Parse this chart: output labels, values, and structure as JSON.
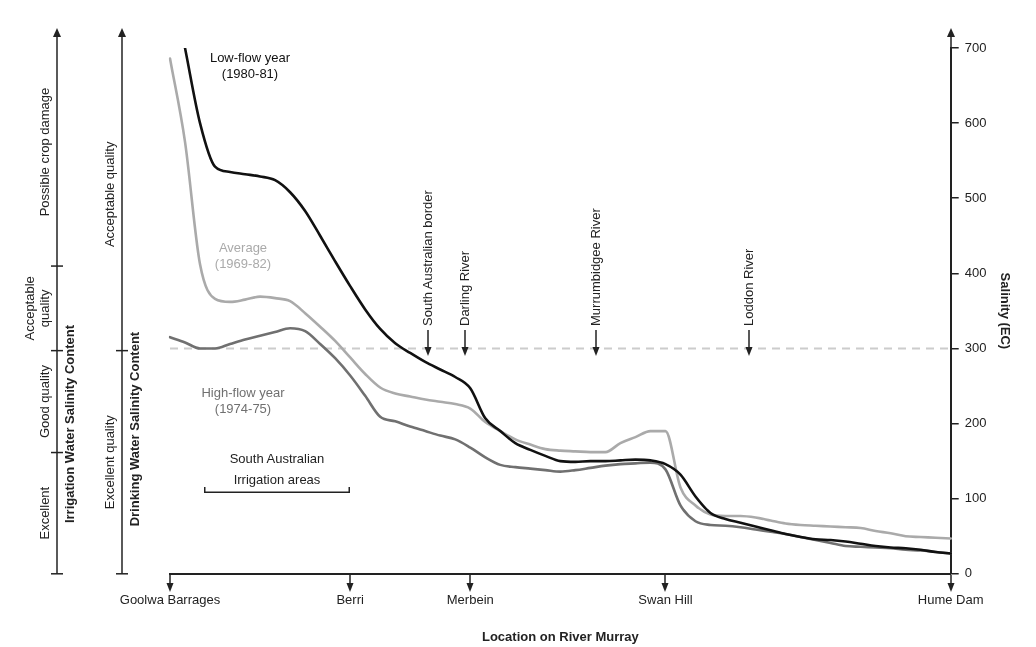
{
  "chart_data": {
    "type": "line",
    "xlabel": "Location on River Murray",
    "ylabel": "Salinity (EC)",
    "categories": [
      "Goolwa Barrages",
      null,
      null,
      null,
      null,
      null,
      null,
      null,
      null,
      null,
      null,
      null,
      "Berri",
      null,
      null,
      null,
      null,
      null,
      null,
      null,
      "Merbein",
      null,
      null,
      null,
      null,
      null,
      null,
      null,
      null,
      null,
      null,
      null,
      null,
      "Swan Hill",
      null,
      null,
      null,
      null,
      null,
      null,
      null,
      null,
      null,
      null,
      null,
      null,
      null,
      null,
      null,
      null,
      null,
      null,
      "Hume Dam"
    ],
    "ylim": [
      0,
      700
    ],
    "yticks": [
      0,
      100,
      200,
      300,
      400,
      500,
      600,
      700
    ],
    "series": [
      {
        "name": "Low-flow year (1980-81)",
        "color": "#111111",
        "values": [
          null,
          700,
          600,
          542,
          535,
          532,
          529,
          524,
          508,
          483,
          450,
          416,
          383,
          352,
          326,
          307,
          294,
          282,
          272,
          262,
          247,
          207,
          190,
          174,
          165,
          157,
          150,
          149,
          150,
          150,
          151,
          152,
          151,
          146,
          132,
          103,
          81,
          73,
          68,
          63,
          58,
          53,
          49,
          46,
          45,
          43,
          40,
          37,
          35,
          34,
          32,
          29,
          27
        ]
      },
      {
        "name": "Average (1969-82)",
        "color": "#aaaaaa",
        "values": [
          686,
          575,
          412,
          366,
          362,
          365,
          369,
          367,
          363,
          347,
          329,
          310,
          288,
          266,
          248,
          240,
          236,
          232,
          229,
          226,
          220,
          202,
          190,
          179,
          172,
          166,
          164,
          163,
          162,
          162,
          174,
          182,
          190,
          190,
          115,
          91,
          79,
          77,
          77,
          75,
          71,
          67,
          65,
          64,
          63,
          62,
          61,
          57,
          54,
          50,
          49,
          48,
          47
        ]
      },
      {
        "name": "High-flow year (1974-75)",
        "color": "#707070",
        "values": [
          315,
          308,
          300,
          300,
          306,
          312,
          317,
          322,
          327,
          323,
          306,
          287,
          264,
          237,
          209,
          203,
          196,
          190,
          184,
          179,
          168,
          155,
          145,
          142,
          140,
          138,
          136,
          138,
          141,
          144,
          146,
          147,
          148,
          139,
          91,
          70,
          65,
          64,
          62,
          59,
          56,
          53,
          49,
          45,
          41,
          37,
          36,
          35,
          34,
          32,
          31,
          29,
          27
        ]
      }
    ],
    "marker": "none",
    "line_style": "solid",
    "grid": false,
    "legend": false,
    "ref_lines": [
      {
        "axis": "y",
        "value": 300,
        "color": "#cccccc",
        "line_style": "dashed"
      }
    ],
    "annotations": [
      "South Australian border",
      "Darling River",
      "Murrumbidgee River",
      "Loddon River",
      "South Australian Irrigation areas",
      "Excellent",
      "Good quality",
      "Acceptable quality",
      "Possible crop damage",
      "Irrigation Water Salinity Content",
      "Excellent quality",
      "Acceptable quality",
      "Drinking Water Salinity Content"
    ]
  }
}
